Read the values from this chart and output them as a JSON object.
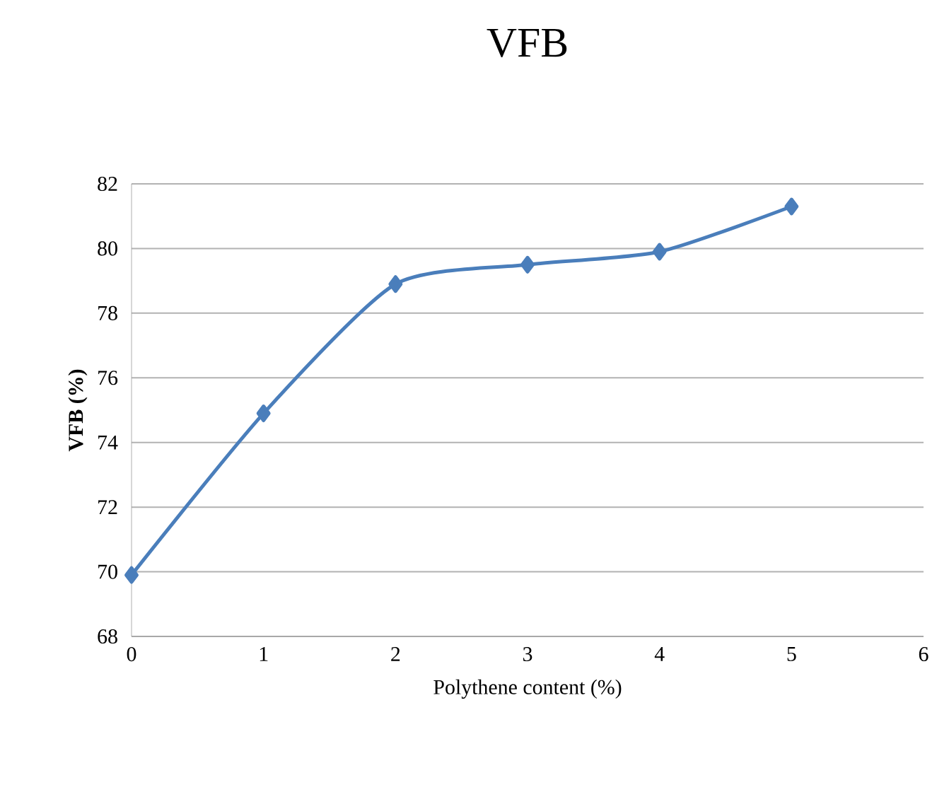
{
  "chart_data": {
    "type": "line",
    "title": "VFB",
    "xlabel": "Polythene content (%)",
    "ylabel": "VFB (%)",
    "x": [
      0,
      1,
      2,
      3,
      4,
      5
    ],
    "series": [
      {
        "color": "#4a7ebb",
        "values": [
          69.9,
          74.9,
          78.9,
          79.5,
          79.9,
          81.3
        ]
      }
    ],
    "xlim": [
      0,
      6
    ],
    "xticks": [
      0,
      1,
      2,
      3,
      4,
      5,
      6
    ],
    "ylim": [
      68,
      82
    ],
    "yticks": [
      68,
      70,
      72,
      74,
      76,
      78,
      80,
      82
    ],
    "grid": "y",
    "marker": "diamond",
    "line_style": "solid"
  }
}
